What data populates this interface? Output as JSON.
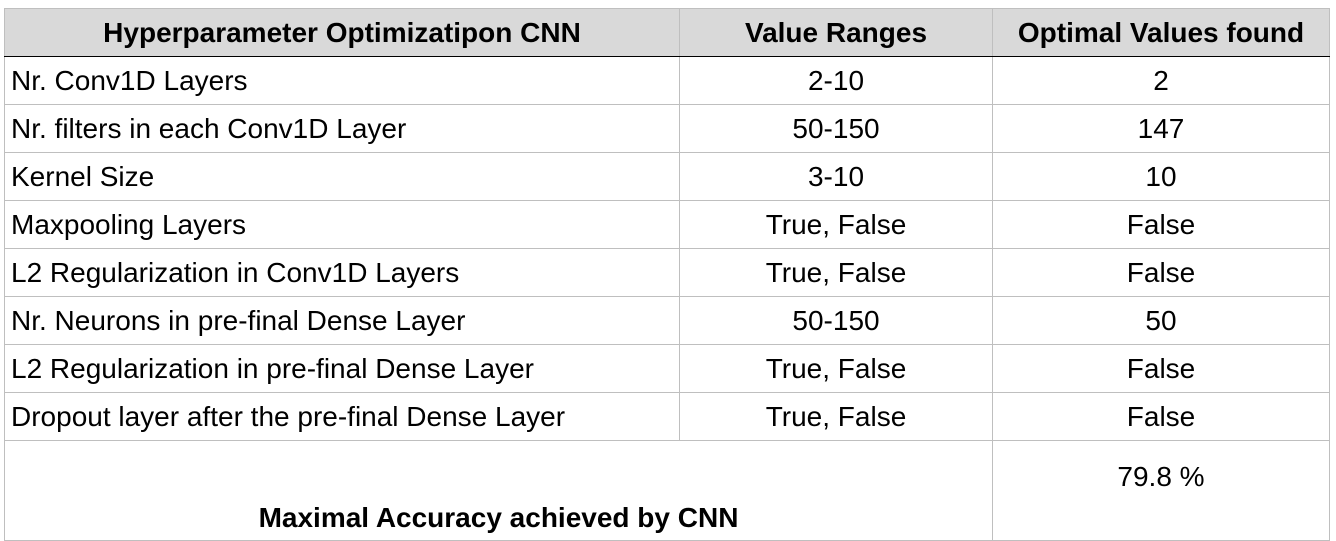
{
  "headers": {
    "col1": "Hyperparameter Optimizatipon CNN",
    "col2": "Value Ranges",
    "col3": "Optimal Values found"
  },
  "rows": [
    {
      "name": "Nr. Conv1D Layers",
      "range": "2-10",
      "optimal": "2"
    },
    {
      "name": "Nr. filters in each Conv1D Layer",
      "range": "50-150",
      "optimal": "147"
    },
    {
      "name": "Kernel Size",
      "range": "3-10",
      "optimal": "10"
    },
    {
      "name": "Maxpooling Layers",
      "range": "True, False",
      "optimal": "False"
    },
    {
      "name": "L2 Regularization in Conv1D Layers",
      "range": "True, False",
      "optimal": "False"
    },
    {
      "name": "Nr. Neurons in pre-final Dense Layer",
      "range": "50-150",
      "optimal": "50"
    },
    {
      "name": "L2 Regularization in pre-final Dense Layer",
      "range": "True, False",
      "optimal": "False"
    },
    {
      "name": "Dropout layer after the pre-final Dense Layer",
      "range": "True, False",
      "optimal": "False"
    }
  ],
  "summary": {
    "label": "Maximal Accuracy achieved by CNN",
    "value": "79.8 %"
  },
  "colors": {
    "header_background": "#d9d9d9",
    "grid_line": "#bfbfbf"
  }
}
